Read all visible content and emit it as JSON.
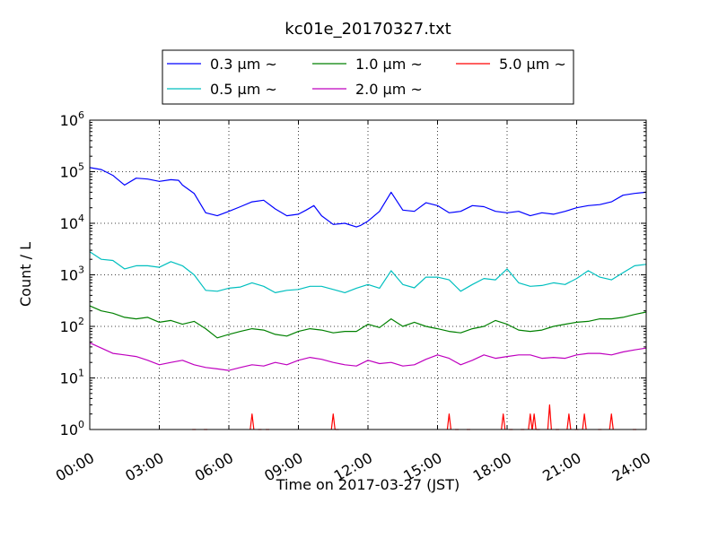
{
  "chart_data": {
    "type": "line",
    "title": "kc01e_20170327.txt",
    "xlabel": "Time on 2017-03-27 (JST)",
    "ylabel": "Count / L",
    "yscale": "log",
    "ylim": [
      1,
      1000000
    ],
    "xlim": [
      "00:00",
      "24:00"
    ],
    "xticks": [
      "00:00",
      "03:00",
      "06:00",
      "09:00",
      "12:00",
      "15:00",
      "18:00",
      "21:00",
      "24:00"
    ],
    "yticks": [
      {
        "base": "10",
        "exp": "0"
      },
      {
        "base": "10",
        "exp": "1"
      },
      {
        "base": "10",
        "exp": "2"
      },
      {
        "base": "10",
        "exp": "3"
      },
      {
        "base": "10",
        "exp": "4"
      },
      {
        "base": "10",
        "exp": "5"
      },
      {
        "base": "10",
        "exp": "6"
      }
    ],
    "grid": true,
    "legend_position": "top-center, above plot",
    "series": [
      {
        "name": "0.3 μm ~",
        "color": "#0000ff",
        "x": [
          "00:00",
          "00:30",
          "01:00",
          "01:30",
          "02:00",
          "02:30",
          "03:00",
          "03:30",
          "03:50",
          "04:00",
          "04:30",
          "05:00",
          "05:30",
          "06:00",
          "06:30",
          "07:00",
          "07:30",
          "08:00",
          "08:30",
          "09:00",
          "09:20",
          "09:40",
          "10:00",
          "10:30",
          "11:00",
          "11:30",
          "11:40",
          "12:00",
          "12:30",
          "13:00",
          "13:30",
          "14:00",
          "14:30",
          "15:00",
          "15:30",
          "16:00",
          "16:30",
          "17:00",
          "17:30",
          "18:00",
          "18:30",
          "19:00",
          "19:30",
          "20:00",
          "20:30",
          "21:00",
          "21:30",
          "22:00",
          "22:30",
          "23:00",
          "23:30",
          "24:00"
        ],
        "y": [
          120000,
          110000,
          85000,
          55000,
          75000,
          72000,
          65000,
          70000,
          68000,
          55000,
          38000,
          16000,
          14000,
          17000,
          21000,
          26000,
          28000,
          19000,
          14000,
          15000,
          18000,
          22000,
          14000,
          9500,
          10000,
          8500,
          9000,
          11000,
          17000,
          40000,
          18000,
          17000,
          25000,
          22000,
          16000,
          17000,
          22000,
          21000,
          17000,
          16000,
          17000,
          14000,
          16000,
          15000,
          17000,
          20000,
          22000,
          23000,
          26000,
          35000,
          38000,
          40000
        ]
      },
      {
        "name": "0.5 μm ~",
        "color": "#00bfbf",
        "x": [
          "00:00",
          "00:30",
          "01:00",
          "01:30",
          "02:00",
          "02:30",
          "03:00",
          "03:30",
          "04:00",
          "04:30",
          "05:00",
          "05:30",
          "06:00",
          "06:30",
          "07:00",
          "07:30",
          "08:00",
          "08:30",
          "09:00",
          "09:30",
          "10:00",
          "10:30",
          "11:00",
          "11:30",
          "12:00",
          "12:30",
          "13:00",
          "13:30",
          "14:00",
          "14:30",
          "15:00",
          "15:30",
          "16:00",
          "16:30",
          "17:00",
          "17:30",
          "18:00",
          "18:30",
          "19:00",
          "19:30",
          "20:00",
          "20:30",
          "21:00",
          "21:30",
          "22:00",
          "22:30",
          "23:00",
          "23:30",
          "24:00"
        ],
        "y": [
          2800,
          2000,
          1900,
          1300,
          1500,
          1500,
          1400,
          1800,
          1500,
          1000,
          500,
          480,
          550,
          580,
          700,
          600,
          450,
          500,
          520,
          600,
          600,
          520,
          450,
          550,
          650,
          550,
          1200,
          650,
          560,
          900,
          900,
          800,
          480,
          650,
          850,
          800,
          1300,
          700,
          600,
          620,
          700,
          650,
          850,
          1200,
          900,
          800,
          1100,
          1500,
          1600
        ]
      },
      {
        "name": "1.0 μm ~",
        "color": "#008000",
        "x": [
          "00:00",
          "00:30",
          "01:00",
          "01:30",
          "02:00",
          "02:30",
          "03:00",
          "03:30",
          "04:00",
          "04:30",
          "05:00",
          "05:30",
          "06:00",
          "06:30",
          "07:00",
          "07:30",
          "08:00",
          "08:30",
          "09:00",
          "09:30",
          "10:00",
          "10:30",
          "11:00",
          "11:30",
          "12:00",
          "12:30",
          "13:00",
          "13:30",
          "14:00",
          "14:30",
          "15:00",
          "15:30",
          "16:00",
          "16:30",
          "17:00",
          "17:30",
          "18:00",
          "18:30",
          "19:00",
          "19:30",
          "20:00",
          "20:30",
          "21:00",
          "21:30",
          "22:00",
          "22:30",
          "23:00",
          "23:30",
          "24:00"
        ],
        "y": [
          250,
          200,
          180,
          150,
          140,
          150,
          120,
          130,
          110,
          125,
          90,
          60,
          70,
          80,
          90,
          85,
          70,
          65,
          80,
          90,
          85,
          75,
          80,
          80,
          110,
          95,
          140,
          100,
          120,
          100,
          90,
          80,
          75,
          90,
          100,
          130,
          110,
          85,
          80,
          85,
          100,
          110,
          120,
          125,
          140,
          140,
          150,
          170,
          190
        ]
      },
      {
        "name": "2.0 μm ~",
        "color": "#bf00bf",
        "x": [
          "00:00",
          "00:30",
          "01:00",
          "01:30",
          "02:00",
          "02:30",
          "03:00",
          "03:30",
          "04:00",
          "04:30",
          "05:00",
          "05:30",
          "06:00",
          "06:30",
          "07:00",
          "07:30",
          "08:00",
          "08:30",
          "09:00",
          "09:30",
          "10:00",
          "10:30",
          "11:00",
          "11:30",
          "12:00",
          "12:30",
          "13:00",
          "13:30",
          "14:00",
          "14:30",
          "15:00",
          "15:30",
          "16:00",
          "16:30",
          "17:00",
          "17:30",
          "18:00",
          "18:30",
          "19:00",
          "19:30",
          "20:00",
          "20:30",
          "21:00",
          "21:30",
          "22:00",
          "22:30",
          "23:00",
          "23:30",
          "24:00"
        ],
        "y": [
          48,
          38,
          30,
          28,
          26,
          22,
          18,
          20,
          22,
          18,
          16,
          15,
          14,
          16,
          18,
          17,
          20,
          18,
          22,
          25,
          23,
          20,
          18,
          17,
          22,
          19,
          20,
          17,
          18,
          23,
          28,
          24,
          18,
          22,
          28,
          24,
          26,
          28,
          28,
          24,
          25,
          24,
          28,
          30,
          30,
          28,
          32,
          35,
          38
        ]
      },
      {
        "name": "5.0 μm ~",
        "color": "#ff0000",
        "x": [
          "04:30",
          "05:00",
          "07:00",
          "07:20",
          "07:40",
          "10:30",
          "10:40",
          "15:30",
          "15:50",
          "16:20",
          "17:50",
          "18:10",
          "18:40",
          "19:00",
          "19:10",
          "19:20",
          "19:50",
          "20:10",
          "20:40",
          "21:00",
          "21:20",
          "22:00",
          "22:30",
          "23:30"
        ],
        "y": [
          1,
          1,
          2,
          1,
          1,
          2,
          1,
          2,
          1,
          1,
          2,
          1,
          1,
          2,
          2,
          1,
          3,
          1,
          2,
          1,
          2,
          1,
          2,
          1
        ]
      }
    ]
  }
}
